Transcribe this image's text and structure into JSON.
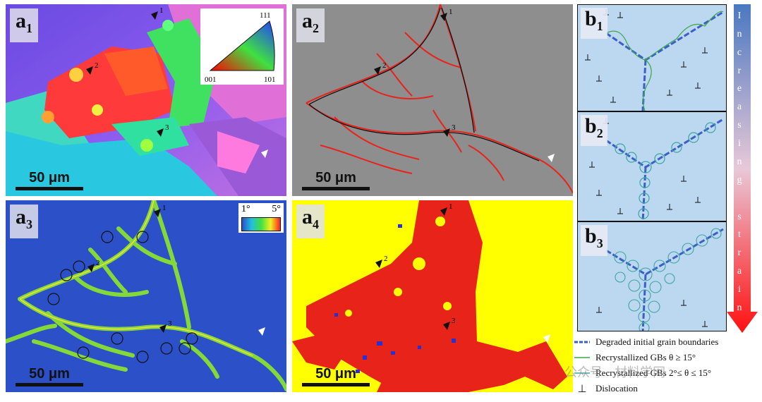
{
  "panels": {
    "a1": {
      "letter": "a",
      "sub": "1",
      "scale": "50 μm",
      "triangle": {
        "top": "111",
        "left": "001",
        "right": "101"
      },
      "markers": [
        "1",
        "2",
        "3"
      ]
    },
    "a2": {
      "letter": "a",
      "sub": "2",
      "scale": "50 μm",
      "markers": [
        "1",
        "2",
        "3"
      ]
    },
    "a3": {
      "letter": "a",
      "sub": "3",
      "scale": "50 μm",
      "markers": [
        "1",
        "2",
        "3"
      ],
      "colorbar": {
        "min": "1°",
        "max": "5°"
      }
    },
    "a4": {
      "letter": "a",
      "sub": "4",
      "scale": "50 μm",
      "markers": [
        "1",
        "2",
        "3"
      ]
    },
    "b1": {
      "letter": "b",
      "sub": "1"
    },
    "b2": {
      "letter": "b",
      "sub": "2"
    },
    "b3": {
      "letter": "b",
      "sub": "3"
    }
  },
  "strain_arrow": {
    "text": "Increasing strain"
  },
  "legend": [
    {
      "label": "Degraded initial grain boundaries",
      "color": "#3a5fc8"
    },
    {
      "label": "Recrystallized GBs θ ≥ 15°",
      "color": "#3aa84a"
    },
    {
      "label": "Recrystallized GBs 2°≤ θ ≤ 15°",
      "color": "#3aa8a0"
    },
    {
      "label": "Dislocation",
      "symbol": "⊥"
    }
  ],
  "watermark": "公众号 · 材料学网",
  "colors": {
    "red": "#e8231a",
    "yellow": "#ffff00",
    "blue_bg": "#2b50c8",
    "panel_blue": "#bcd7f0"
  }
}
